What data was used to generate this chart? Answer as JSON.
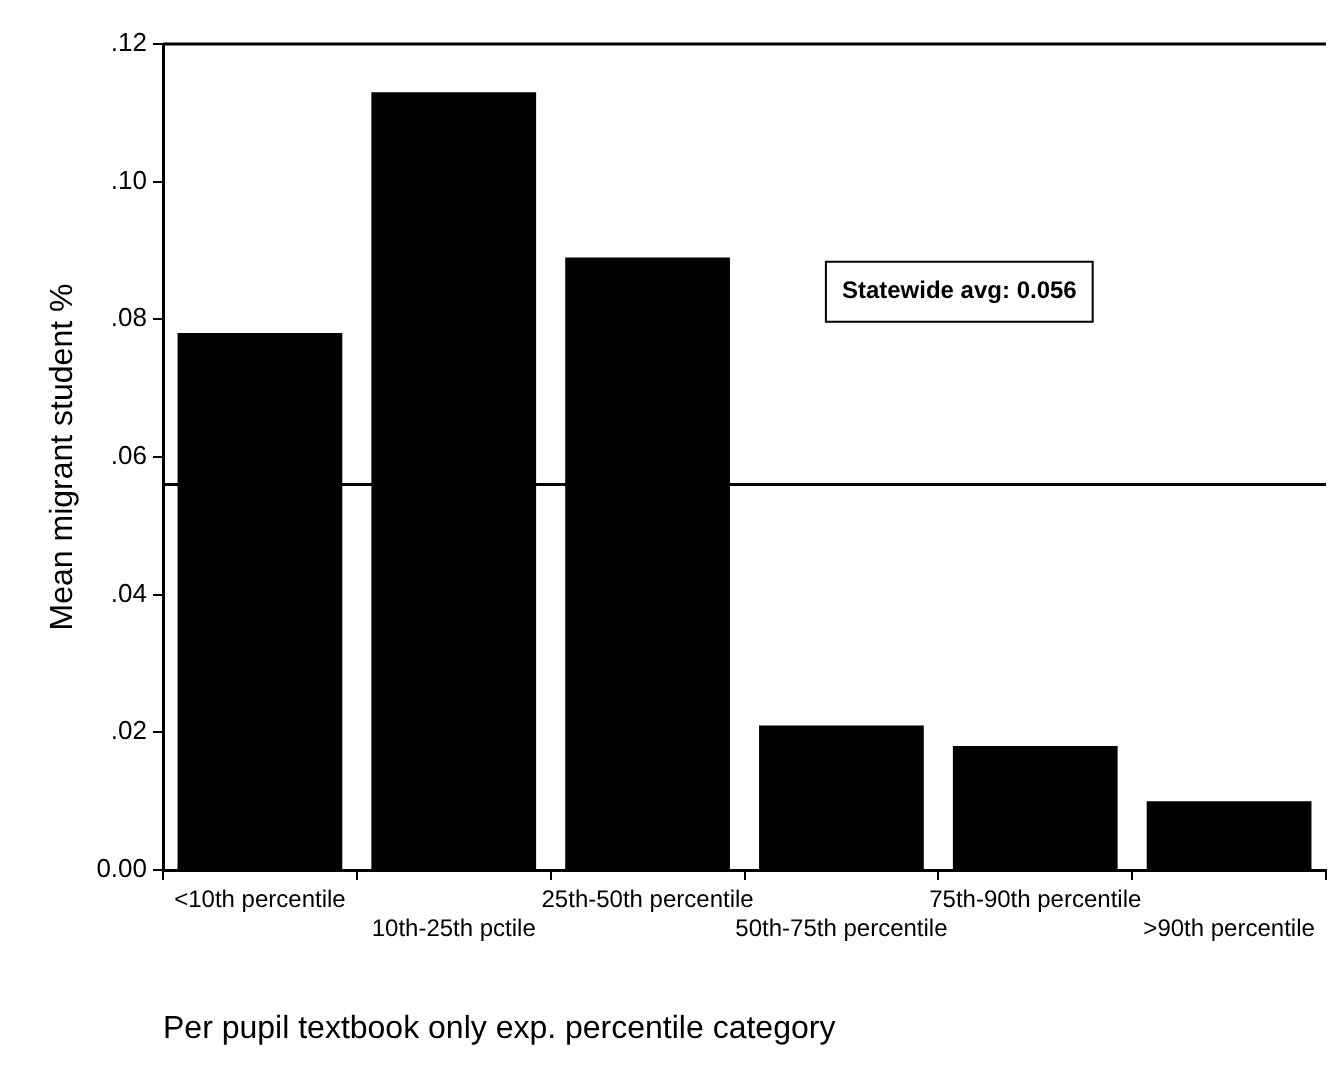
{
  "chart_data": {
    "type": "bar",
    "xlabel": "Per pupil textbook only exp. percentile category",
    "ylabel": "Mean migrant student %",
    "categories": [
      "<10th percentile",
      "10th-25th pctile",
      "25th-50th percentile",
      "50th-75th percentile",
      "75th-90th percentile",
      ">90th percentile"
    ],
    "values": [
      0.078,
      0.113,
      0.089,
      0.021,
      0.018,
      0.01
    ],
    "color": "#000000",
    "ylim": [
      0,
      0.12
    ],
    "yticks": [
      {
        "value": 0,
        "label": "0.00"
      },
      {
        "value": 0.02,
        "label": ".02"
      },
      {
        "value": 0.04,
        "label": ".04"
      },
      {
        "value": 0.06,
        "label": ".06"
      },
      {
        "value": 0.08,
        "label": ".08"
      },
      {
        "value": 0.1,
        "label": ".10"
      },
      {
        "value": 0.12,
        "label": ".12"
      }
    ],
    "ref_lines": [
      {
        "axis": "y",
        "value": 0.056,
        "label": "Statewide avg: 0.056",
        "color": "#000000"
      }
    ],
    "grid": false,
    "legend": false
  }
}
